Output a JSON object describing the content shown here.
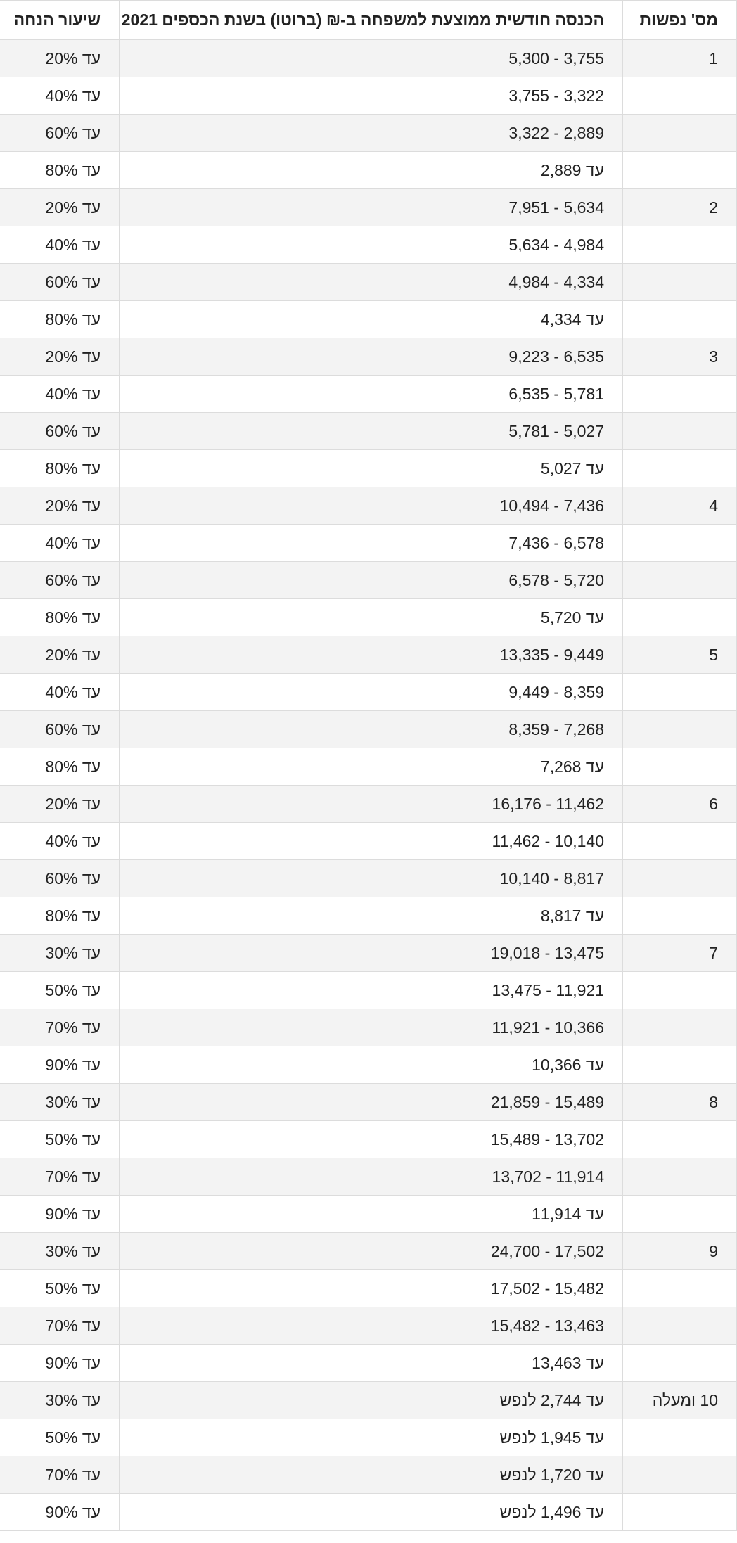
{
  "table": {
    "headers": {
      "persons": "מס' נפשות",
      "income": "הכנסה חודשית ממוצעת למשפחה ב-₪ (ברוטו) בשנת הכספים 2021",
      "discount": "שיעור הנחה"
    },
    "rows": [
      {
        "persons": "1",
        "income": "3,755 - 5,300",
        "discount": "עד 20%"
      },
      {
        "persons": "",
        "income": "3,322 - 3,755",
        "discount": "עד 40%"
      },
      {
        "persons": "",
        "income": "2,889 - 3,322",
        "discount": "עד 60%"
      },
      {
        "persons": "",
        "income": "עד 2,889",
        "discount": "עד 80%"
      },
      {
        "persons": "2",
        "income": "5,634 - 7,951",
        "discount": "עד 20%"
      },
      {
        "persons": "",
        "income": "4,984 - 5,634",
        "discount": "עד 40%"
      },
      {
        "persons": "",
        "income": "4,334 - 4,984",
        "discount": "עד 60%"
      },
      {
        "persons": "",
        "income": "עד 4,334",
        "discount": "עד 80%"
      },
      {
        "persons": "3",
        "income": "6,535 - 9,223",
        "discount": "עד 20%"
      },
      {
        "persons": "",
        "income": "5,781 - 6,535",
        "discount": "עד 40%"
      },
      {
        "persons": "",
        "income": "5,027 - 5,781",
        "discount": "עד 60%"
      },
      {
        "persons": "",
        "income": "עד 5,027",
        "discount": "עד 80%"
      },
      {
        "persons": "4",
        "income": "7,436 - 10,494",
        "discount": "עד 20%"
      },
      {
        "persons": "",
        "income": "6,578 - 7,436",
        "discount": "עד 40%"
      },
      {
        "persons": "",
        "income": "5,720 - 6,578",
        "discount": "עד 60%"
      },
      {
        "persons": "",
        "income": "עד 5,720",
        "discount": "עד 80%"
      },
      {
        "persons": "5",
        "income": "9,449 - 13,335",
        "discount": "עד 20%"
      },
      {
        "persons": "",
        "income": "8,359 - 9,449",
        "discount": "עד 40%"
      },
      {
        "persons": "",
        "income": "7,268 - 8,359",
        "discount": "עד 60%"
      },
      {
        "persons": "",
        "income": "עד 7,268",
        "discount": "עד 80%"
      },
      {
        "persons": "6",
        "income": "11,462 - 16,176",
        "discount": "עד 20%"
      },
      {
        "persons": "",
        "income": "10,140 - 11,462",
        "discount": "עד 40%"
      },
      {
        "persons": "",
        "income": "8,817 - 10,140",
        "discount": "עד 60%"
      },
      {
        "persons": "",
        "income": "עד 8,817",
        "discount": "עד 80%"
      },
      {
        "persons": "7",
        "income": "13,475 - 19,018",
        "discount": "עד 30%"
      },
      {
        "persons": "",
        "income": "11,921 - 13,475",
        "discount": "עד 50%"
      },
      {
        "persons": "",
        "income": "10,366 - 11,921",
        "discount": "עד 70%"
      },
      {
        "persons": "",
        "income": "עד 10,366",
        "discount": "עד 90%"
      },
      {
        "persons": "8",
        "income": "15,489 - 21,859",
        "discount": "עד 30%"
      },
      {
        "persons": "",
        "income": "13,702 - 15,489",
        "discount": "עד 50%"
      },
      {
        "persons": "",
        "income": "11,914 - 13,702",
        "discount": "עד 70%"
      },
      {
        "persons": "",
        "income": "עד 11,914",
        "discount": "עד 90%"
      },
      {
        "persons": "9",
        "income": "17,502 - 24,700",
        "discount": "עד 30%"
      },
      {
        "persons": "",
        "income": "15,482 - 17,502",
        "discount": "עד 50%"
      },
      {
        "persons": "",
        "income": "13,463 - 15,482",
        "discount": "עד 70%"
      },
      {
        "persons": "",
        "income": "עד 13,463",
        "discount": "עד 90%"
      },
      {
        "persons": "10 ומעלה",
        "income": "עד 2,744 לנפש",
        "discount": "עד 30%"
      },
      {
        "persons": "",
        "income": "עד 1,945 לנפש",
        "discount": "עד 50%"
      },
      {
        "persons": "",
        "income": "עד 1,720 לנפש",
        "discount": "עד 70%"
      },
      {
        "persons": "",
        "income": "עד 1,496 לנפש",
        "discount": "עד 90%"
      }
    ]
  }
}
